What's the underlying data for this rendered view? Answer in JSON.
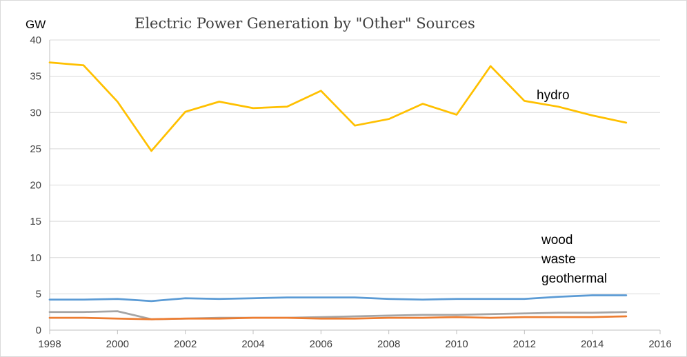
{
  "chart_data": {
    "type": "line",
    "title": "Electric Power Generation by \"Other\" Sources",
    "xlabel": "",
    "ylabel": "GW",
    "xlim": [
      1998,
      2016
    ],
    "ylim": [
      0,
      40
    ],
    "x_ticks": [
      1998,
      2000,
      2002,
      2004,
      2006,
      2008,
      2010,
      2012,
      2014,
      2016
    ],
    "y_ticks": [
      0,
      5,
      10,
      15,
      20,
      25,
      30,
      35,
      40
    ],
    "grid": true,
    "x": [
      1998,
      1999,
      2000,
      2001,
      2002,
      2003,
      2004,
      2005,
      2006,
      2007,
      2008,
      2009,
      2010,
      2011,
      2012,
      2013,
      2014,
      2015
    ],
    "series": [
      {
        "name": "hydro",
        "color": "#FFC000",
        "values": [
          36.9,
          36.5,
          31.5,
          24.7,
          30.1,
          31.5,
          30.6,
          30.8,
          33.0,
          28.2,
          29.1,
          31.2,
          29.7,
          36.4,
          31.6,
          30.8,
          29.6,
          28.6
        ]
      },
      {
        "name": "wood",
        "color": "#5B9BD5",
        "values": [
          4.2,
          4.2,
          4.3,
          4.0,
          4.4,
          4.3,
          4.4,
          4.5,
          4.5,
          4.5,
          4.3,
          4.2,
          4.3,
          4.3,
          4.3,
          4.6,
          4.8,
          4.8
        ]
      },
      {
        "name": "waste",
        "color": "#A5A5A5",
        "values": [
          2.5,
          2.5,
          2.6,
          1.5,
          1.6,
          1.7,
          1.7,
          1.7,
          1.8,
          1.9,
          2.0,
          2.1,
          2.1,
          2.2,
          2.3,
          2.4,
          2.4,
          2.5
        ]
      },
      {
        "name": "geothermal",
        "color": "#ED7D31",
        "values": [
          1.7,
          1.7,
          1.6,
          1.5,
          1.6,
          1.6,
          1.7,
          1.7,
          1.6,
          1.6,
          1.7,
          1.7,
          1.8,
          1.7,
          1.8,
          1.8,
          1.8,
          1.9
        ]
      }
    ]
  }
}
